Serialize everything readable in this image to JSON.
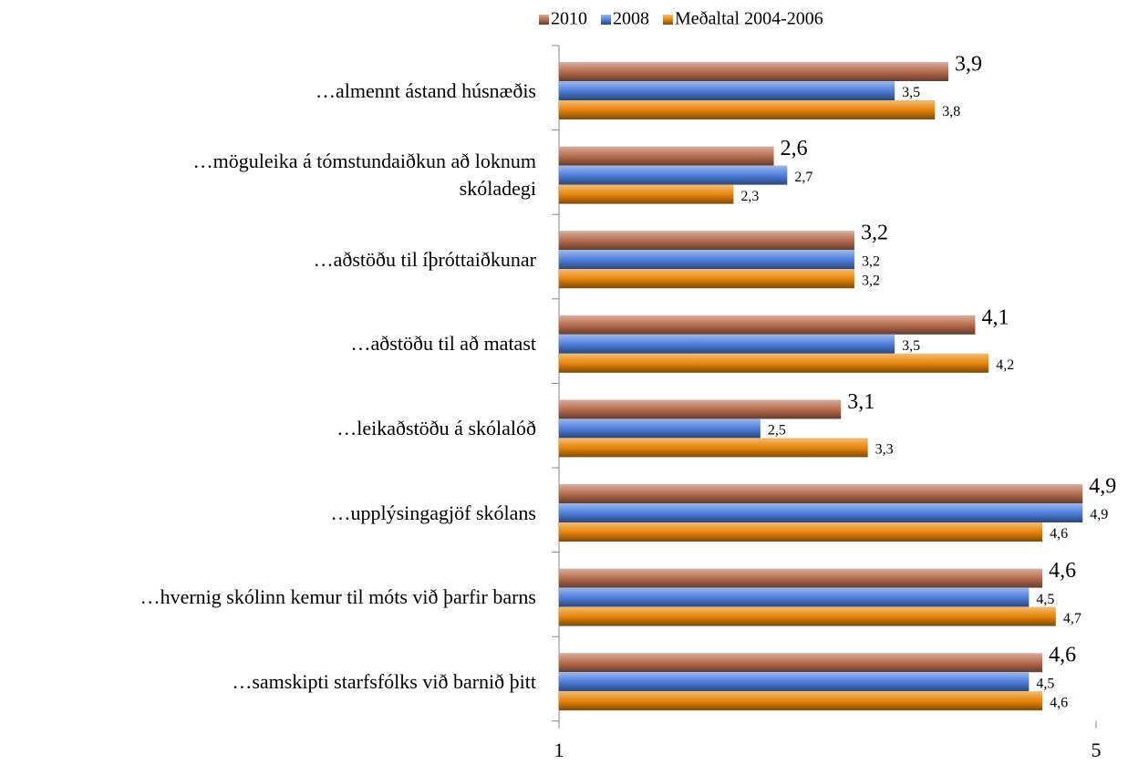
{
  "chart_data": {
    "type": "bar",
    "orientation": "horizontal",
    "categories": [
      "…almennt ástand húsnæðis",
      "…möguleika á tómstundaiðkun að loknum\nskóladegi",
      "…aðstöðu til íþróttaiðkunar",
      "…aðstöðu til að matast",
      "…leikaðstöðu á skólalóð",
      "…upplýsingagjöf skólans",
      "…hvernig skólinn kemur til móts við þarfir barns",
      "…samskipti starfsfólks við barnið þitt"
    ],
    "series": [
      {
        "name": "2010",
        "color": "#b86d4f",
        "values": [
          3.9,
          2.6,
          3.2,
          4.1,
          3.1,
          4.9,
          4.6,
          4.6
        ],
        "value_labels": [
          "3,9",
          "2,6",
          "3,2",
          "4,1",
          "3,1",
          "4,9",
          "4,6",
          "4,6"
        ]
      },
      {
        "name": "2008",
        "color": "#4f7fdc",
        "values": [
          3.5,
          2.7,
          3.2,
          3.5,
          2.5,
          4.9,
          4.5,
          4.5
        ],
        "value_labels": [
          "3,5",
          "2,7",
          "3,2",
          "3,5",
          "2,5",
          "4,9",
          "4,5",
          "4,5"
        ]
      },
      {
        "name": "Meðaltal 2004-2006",
        "color": "#e8860a",
        "values": [
          3.8,
          2.3,
          3.2,
          4.2,
          3.3,
          4.6,
          4.7,
          4.6
        ],
        "value_labels": [
          "3,8",
          "2,3",
          "3,2",
          "4,2",
          "3,3",
          "4,6",
          "4,7",
          "4,6"
        ]
      }
    ],
    "xlim": [
      1,
      5
    ],
    "xticks": [
      1,
      5
    ],
    "legend": "top"
  }
}
